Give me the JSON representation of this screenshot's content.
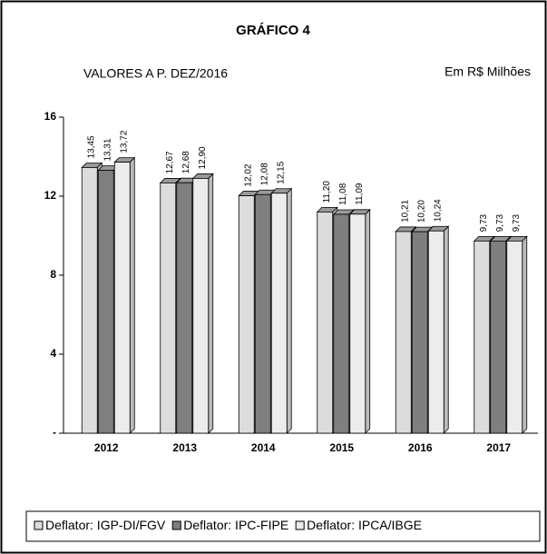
{
  "chart_data": {
    "type": "bar",
    "title": "GRÁFICO 4",
    "subtitle": "VALORES A P. DEZ/2016",
    "unit_note": "Em R$ Milhões",
    "categories": [
      "2012",
      "2013",
      "2014",
      "2015",
      "2016",
      "2017"
    ],
    "series": [
      {
        "name": "Deflator: IGP-DI/FGV",
        "color": "#dcdcdc",
        "values": [
          13.45,
          12.67,
          12.02,
          11.2,
          10.21,
          9.73
        ],
        "value_labels": [
          "13,45",
          "12,67",
          "12,02",
          "11,20",
          "10,21",
          "9,73"
        ]
      },
      {
        "name": "Deflator: IPC-FIPE",
        "color": "#7f7f7f",
        "values": [
          13.31,
          12.68,
          12.08,
          11.08,
          10.2,
          9.73
        ],
        "value_labels": [
          "13,31",
          "12,68",
          "12,08",
          "11,08",
          "10,20",
          "9,73"
        ]
      },
      {
        "name": "Deflator: IPCA/IBGE",
        "color": "#ececec",
        "values": [
          13.72,
          12.9,
          12.15,
          11.09,
          10.24,
          9.73
        ],
        "value_labels": [
          "13,72",
          "12,90",
          "12,15",
          "11,09",
          "10,24",
          "9,73"
        ]
      }
    ],
    "ylim": [
      0,
      16
    ],
    "yticks": [
      {
        "value": 0,
        "label": "-"
      },
      4,
      8,
      12,
      16
    ],
    "grid": false,
    "legend": "bottom"
  }
}
